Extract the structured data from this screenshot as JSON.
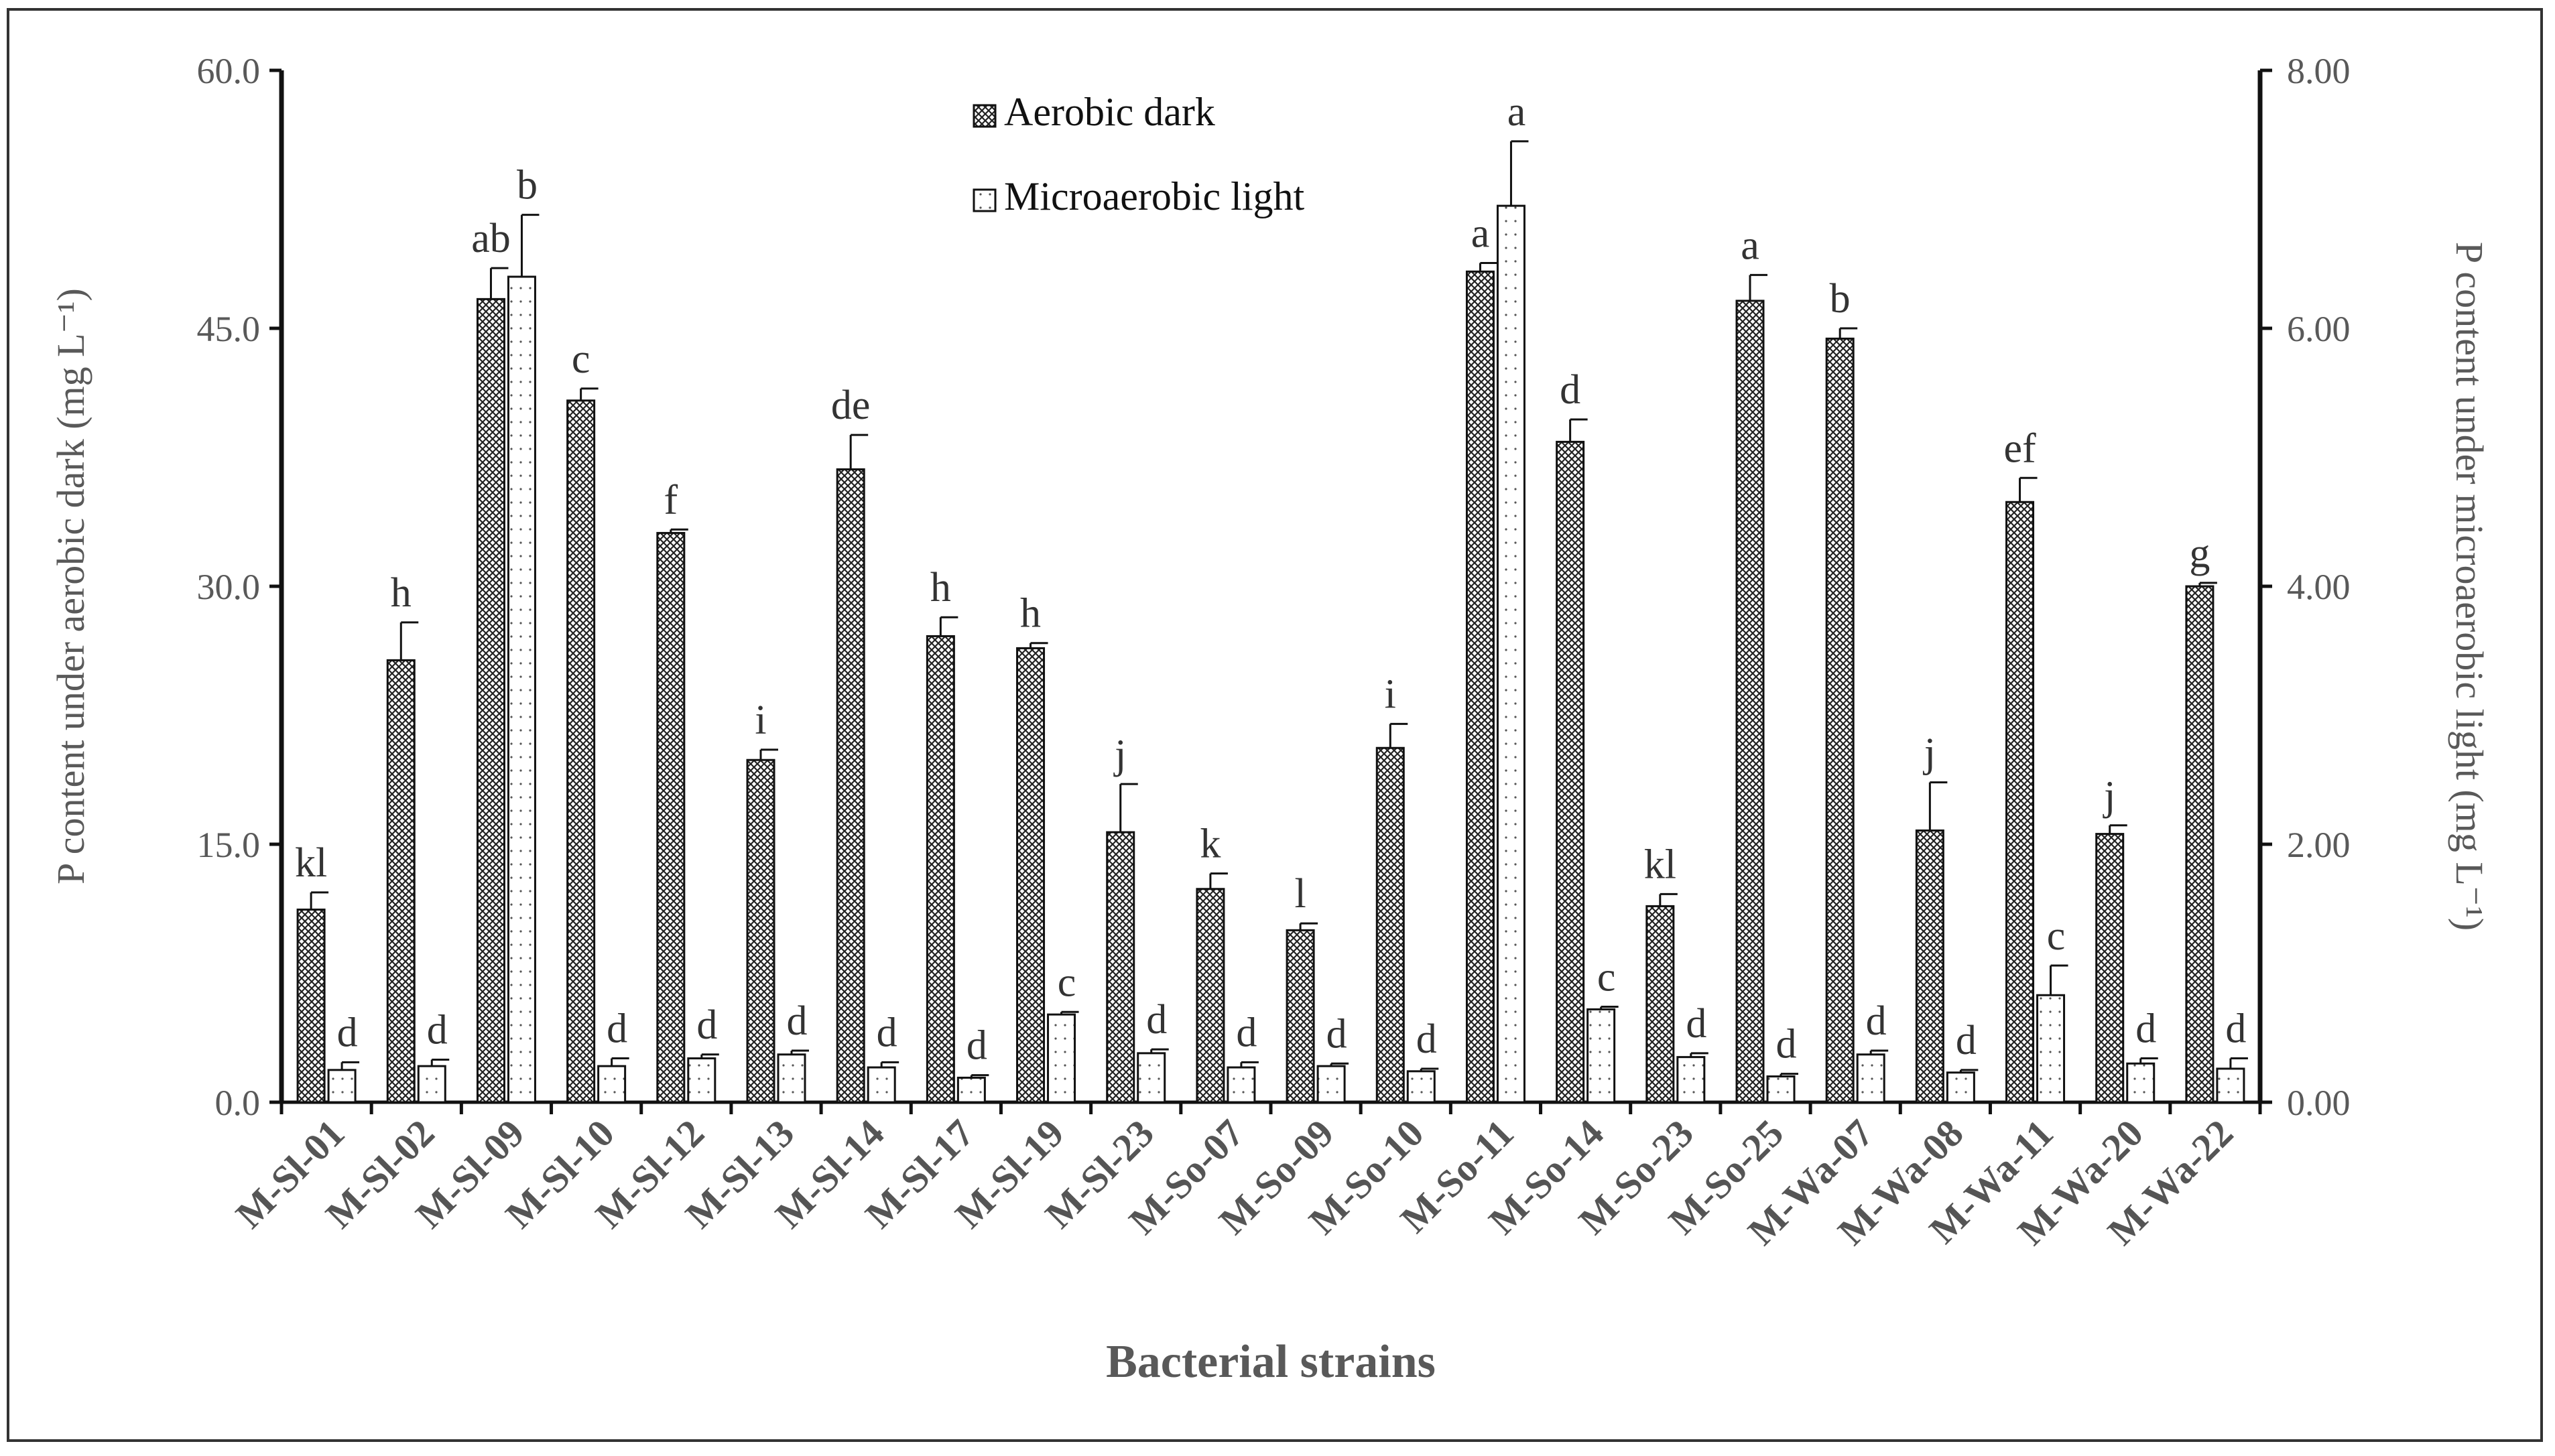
{
  "chart_data": {
    "type": "bar",
    "xlabel": "Bacterial strains",
    "ylabel_left": "P content under aerobic dark (mg L⁻¹)",
    "ylabel_right": "P content under microaerobic light (mg L⁻¹)",
    "ylim_left": [
      0,
      60
    ],
    "ylim_right": [
      0,
      8
    ],
    "yticks_left": [
      "0.0",
      "15.0",
      "30.0",
      "45.0",
      "60.0"
    ],
    "yticks_right": [
      "0.00",
      "2.00",
      "4.00",
      "6.00",
      "8.00"
    ],
    "legend_position": "top-center",
    "grid": false,
    "categories": [
      "M-Sl-01",
      "M-Sl-02",
      "M-Sl-09",
      "M-Sl-10",
      "M-Sl-12",
      "M-Sl-13",
      "M-Sl-14",
      "M-Sl-17",
      "M-Sl-19",
      "M-Sl-23",
      "M-So-07",
      "M-So-09",
      "M-So-10",
      "M-So-11",
      "M-So-14",
      "M-So-23",
      "M-So-25",
      "M-Wa-07",
      "M-Wa-08",
      "M-Wa-11",
      "M-Wa-20",
      "M-Wa-22"
    ],
    "series": [
      {
        "name": "Aerobic dark",
        "axis": "left",
        "values": [
          11.2,
          25.7,
          46.7,
          40.8,
          33.1,
          19.9,
          36.8,
          27.1,
          26.4,
          15.7,
          12.4,
          10.0,
          20.6,
          48.3,
          38.4,
          11.4,
          46.6,
          44.4,
          15.8,
          34.9,
          15.6,
          30.0
        ],
        "errors": [
          1.0,
          2.2,
          1.8,
          0.7,
          0.2,
          0.6,
          2.0,
          1.1,
          0.3,
          2.8,
          0.9,
          0.4,
          1.4,
          0.5,
          1.3,
          0.7,
          1.5,
          0.6,
          2.8,
          1.4,
          0.5,
          0.2
        ],
        "letters": [
          "kl",
          "h",
          "ab",
          "c",
          "f",
          "i",
          "de",
          "h",
          "h",
          "j",
          "k",
          "l",
          "i",
          "a",
          "d",
          "kl",
          "a",
          "b",
          "j",
          "ef",
          "j",
          "g"
        ]
      },
      {
        "name": "Microaerobic light",
        "axis": "right",
        "values": [
          0.25,
          0.28,
          6.4,
          0.28,
          0.34,
          0.37,
          0.27,
          0.19,
          0.68,
          0.38,
          0.27,
          0.28,
          0.24,
          6.95,
          0.72,
          0.35,
          0.2,
          0.37,
          0.23,
          0.83,
          0.3,
          0.26
        ],
        "errors": [
          0.06,
          0.05,
          0.48,
          0.06,
          0.03,
          0.03,
          0.04,
          0.02,
          0.02,
          0.03,
          0.04,
          0.02,
          0.02,
          0.5,
          0.02,
          0.03,
          0.02,
          0.03,
          0.02,
          0.23,
          0.04,
          0.08
        ],
        "letters": [
          "d",
          "d",
          "b",
          "d",
          "d",
          "d",
          "d",
          "d",
          "c",
          "d",
          "d",
          "d",
          "d",
          "a",
          "c",
          "d",
          "d",
          "d",
          "d",
          "c",
          "d",
          "d"
        ]
      }
    ]
  }
}
